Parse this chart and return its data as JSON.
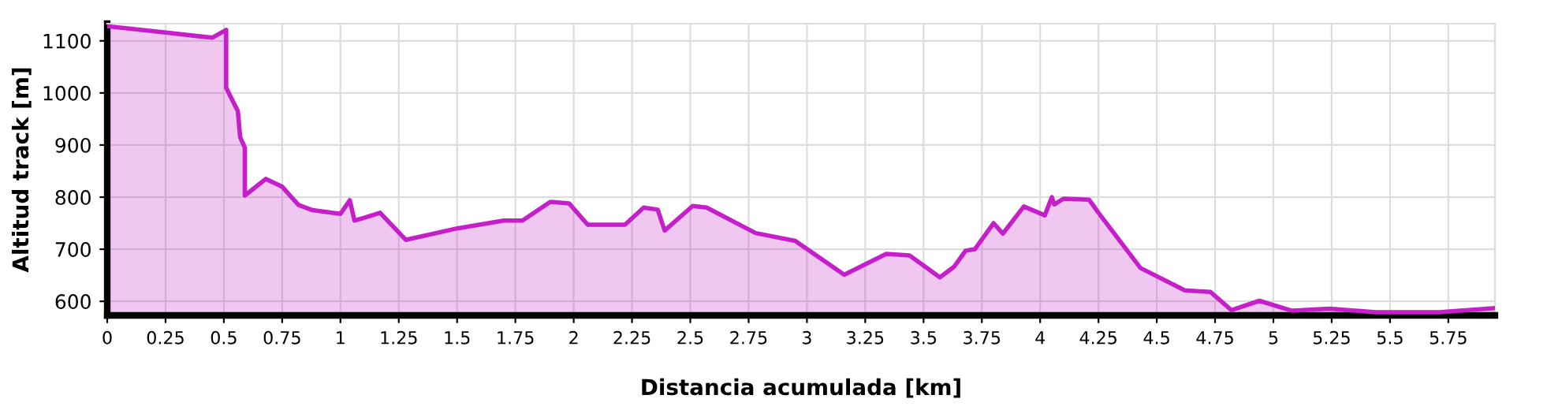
{
  "chart_data": {
    "type": "area",
    "xlabel": "Distancia acumulada [km]",
    "ylabel": "Altitud track [m]",
    "x": [
      0,
      0.25,
      0.45,
      0.51,
      0.51,
      0.56,
      0.57,
      0.59,
      0.59,
      0.68,
      0.75,
      0.82,
      0.88,
      1.0,
      1.04,
      1.06,
      1.1,
      1.17,
      1.28,
      1.5,
      1.7,
      1.78,
      1.9,
      1.98,
      2.06,
      2.22,
      2.3,
      2.36,
      2.39,
      2.51,
      2.57,
      2.78,
      2.95,
      3.16,
      3.34,
      3.44,
      3.57,
      3.63,
      3.68,
      3.72,
      3.8,
      3.84,
      3.93,
      4.02,
      4.05,
      4.06,
      4.1,
      4.21,
      4.25,
      4.43,
      4.62,
      4.73,
      4.82,
      4.94,
      5.08,
      5.24,
      5.44,
      5.71,
      5.95
    ],
    "series": [
      {
        "color": "#c41fc9",
        "values": [
          1128,
          1116,
          1106,
          1121,
          1010,
          965,
          915,
          895,
          803,
          835,
          820,
          785,
          775,
          768,
          794,
          755,
          760,
          770,
          718,
          740,
          755,
          755,
          791,
          788,
          747,
          747,
          780,
          776,
          736,
          783,
          780,
          731,
          716,
          651,
          691,
          688,
          646,
          666,
          697,
          700,
          750,
          730,
          782,
          765,
          800,
          786,
          797,
          795,
          770,
          664,
          621,
          618,
          583,
          601,
          582,
          586,
          579,
          579,
          587
        ]
      }
    ],
    "xlim": [
      0,
      5.95
    ],
    "ylim": [
      573,
      1133
    ],
    "xticks": [
      0,
      {
        "value": 0.25,
        "label": "0.25"
      },
      {
        "value": 0.5,
        "label": "0.5"
      },
      {
        "value": 0.75,
        "label": "0.75"
      },
      1,
      {
        "value": 1.25,
        "label": "1.25"
      },
      {
        "value": 1.5,
        "label": "1.5"
      },
      {
        "value": 1.75,
        "label": "1.75"
      },
      2,
      {
        "value": 2.25,
        "label": "2.25"
      },
      {
        "value": 2.5,
        "label": "2.5"
      },
      {
        "value": 2.75,
        "label": "2.75"
      },
      3,
      {
        "value": 3.25,
        "label": "3.25"
      },
      {
        "value": 3.5,
        "label": "3.5"
      },
      {
        "value": 3.75,
        "label": "3.75"
      },
      4,
      {
        "value": 4.25,
        "label": "4.25"
      },
      {
        "value": 4.5,
        "label": "4.5"
      },
      {
        "value": 4.75,
        "label": "4.75"
      },
      5,
      {
        "value": 5.25,
        "label": "5.25"
      },
      {
        "value": 5.5,
        "label": "5.5"
      },
      {
        "value": 5.75,
        "label": "5.75"
      }
    ],
    "yticks": [
      600,
      700,
      800,
      900,
      1000,
      1100
    ],
    "grid": true,
    "line_style": "solid",
    "marker": "none"
  }
}
